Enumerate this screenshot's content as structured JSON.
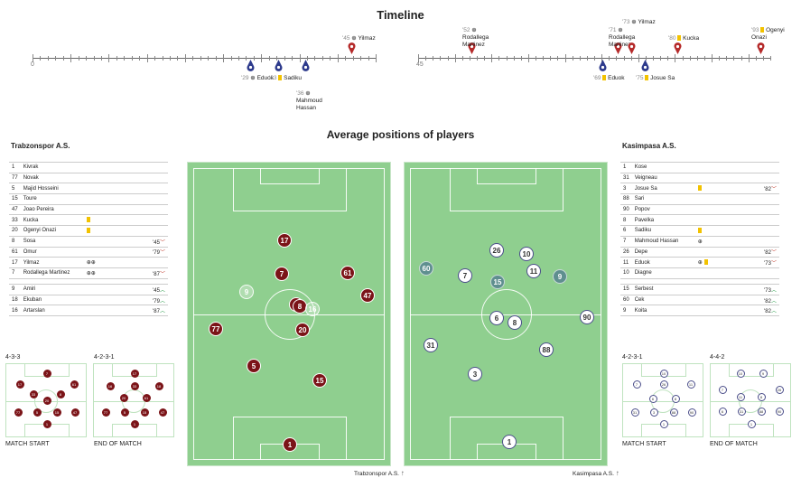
{
  "timeline": {
    "title": "Timeline",
    "start1": "0",
    "start2": "45",
    "events": [
      {
        "min": "'29",
        "text": "Eduok",
        "icon": "goal",
        "side": "bottom",
        "team": "home"
      },
      {
        "min": "'33",
        "text": "Sadiku",
        "icon": "yellow",
        "side": "bottom",
        "team": "home"
      },
      {
        "min": "'36",
        "text": "Mahmoud Hassan",
        "icon": "goal",
        "side": "bottom",
        "team": "home"
      },
      {
        "min": "'45",
        "text": "Yilmaz",
        "icon": "goal",
        "side": "top",
        "team": "away"
      },
      {
        "min": "'52",
        "text": "Rodallega Martinez",
        "icon": "goal",
        "side": "top",
        "team": "away"
      },
      {
        "min": "'69",
        "text": "Eduok",
        "icon": "yellow",
        "side": "bottom",
        "team": "home"
      },
      {
        "min": "'71",
        "text": "Rodallega Martinez",
        "icon": "goal",
        "side": "top",
        "team": "away"
      },
      {
        "min": "'73",
        "text": "Yilmaz",
        "icon": "goal",
        "side": "top",
        "team": "away"
      },
      {
        "min": "'75",
        "text": "Josue Sa",
        "icon": "yellow",
        "side": "bottom",
        "team": "home"
      },
      {
        "min": "'80",
        "text": "Kucka",
        "icon": "yellow",
        "side": "top",
        "team": "away"
      },
      {
        "min": "'93",
        "text": "Ogenyi Onazi",
        "icon": "yellow",
        "side": "top",
        "team": "away"
      }
    ]
  },
  "positions": {
    "title": "Average positions of players"
  },
  "home": {
    "name": "Trabzonspor A.S.",
    "starters": [
      {
        "n": "1",
        "name": "Kivrak",
        "icons": "",
        "sub": ""
      },
      {
        "n": "77",
        "name": "Novak",
        "icons": "",
        "sub": ""
      },
      {
        "n": "5",
        "name": "Majid Hosseini",
        "icons": "",
        "sub": ""
      },
      {
        "n": "15",
        "name": "Toure",
        "icons": "",
        "sub": ""
      },
      {
        "n": "47",
        "name": "Joao Pereira",
        "icons": "",
        "sub": ""
      },
      {
        "n": "33",
        "name": "Kucka",
        "icons": "yellow",
        "sub": ""
      },
      {
        "n": "20",
        "name": "Ogenyi Onazi",
        "icons": "yellow",
        "sub": ""
      },
      {
        "n": "8",
        "name": "Sosa",
        "icons": "",
        "sub": "'45"
      },
      {
        "n": "61",
        "name": "Omur",
        "icons": "",
        "sub": "'79"
      },
      {
        "n": "17",
        "name": "Yilmaz",
        "icons": "⊕⊕",
        "sub": ""
      },
      {
        "n": "7",
        "name": "Rodallega Martinez",
        "icons": "⊕⊕",
        "sub": "'87"
      }
    ],
    "subs": [
      {
        "n": "9",
        "name": "Amiri",
        "sub": "'45"
      },
      {
        "n": "18",
        "name": "Ekuban",
        "sub": "'79"
      },
      {
        "n": "16",
        "name": "Artarslan",
        "sub": "'87"
      }
    ],
    "formation_start": "4-3-3",
    "formation_end": "4-2-3-1",
    "caption_start": "MATCH START",
    "caption_end": "END OF MATCH",
    "pitch_caption": "Trabzonspor A.S."
  },
  "away": {
    "name": "Kasimpasa A.S.",
    "starters": [
      {
        "n": "1",
        "name": "Kose",
        "icons": "",
        "sub": ""
      },
      {
        "n": "31",
        "name": "Veigneau",
        "icons": "",
        "sub": ""
      },
      {
        "n": "3",
        "name": "Josue Sa",
        "icons": "yellow",
        "sub": "'82"
      },
      {
        "n": "88",
        "name": "Sari",
        "icons": "",
        "sub": ""
      },
      {
        "n": "90",
        "name": "Popov",
        "icons": "",
        "sub": ""
      },
      {
        "n": "8",
        "name": "Pavelka",
        "icons": "",
        "sub": ""
      },
      {
        "n": "6",
        "name": "Sadiku",
        "icons": "yellow",
        "sub": ""
      },
      {
        "n": "7",
        "name": "Mahmoud Hassan",
        "icons": "⊕",
        "sub": ""
      },
      {
        "n": "26",
        "name": "Depe",
        "icons": "",
        "sub": "'82"
      },
      {
        "n": "11",
        "name": "Eduok",
        "icons": "⊕ yellow",
        "sub": "'73"
      },
      {
        "n": "10",
        "name": "Diagne",
        "icons": "",
        "sub": ""
      }
    ],
    "subs": [
      {
        "n": "15",
        "name": "Serbest",
        "sub": "'73"
      },
      {
        "n": "60",
        "name": "Cek",
        "sub": "'82"
      },
      {
        "n": "9",
        "name": "Koita",
        "sub": "'82"
      }
    ],
    "formation_start": "4-2-3-1",
    "formation_end": "4-4-2",
    "caption_start": "MATCH START",
    "caption_end": "END OF MATCH",
    "pitch_caption": "Kasimpasa A.S."
  }
}
